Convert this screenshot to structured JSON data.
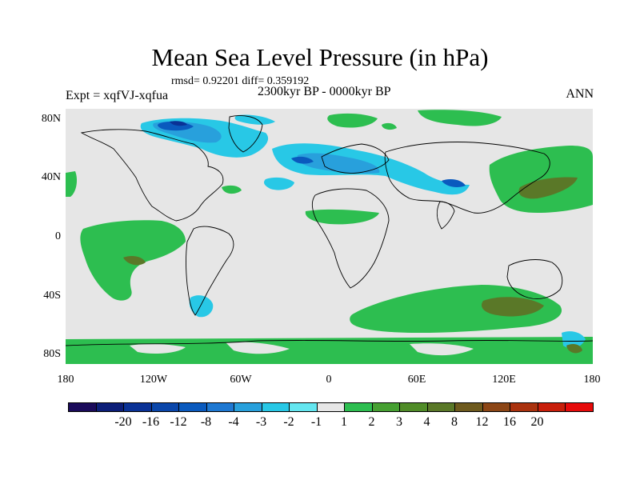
{
  "title": "Mean Sea Level Pressure (in hPa)",
  "stats": "rmsd= 0.92201 diff= 0.359192",
  "experiment": "Expt = xqfVJ-xqfua",
  "period": "2300kyr BP - 0000kyr BP",
  "season": "ANN",
  "lat_labels": [
    "80N",
    "40N",
    "0",
    "40S",
    "80S"
  ],
  "lon_labels": [
    "180",
    "120W",
    "60W",
    "0",
    "60E",
    "120E",
    "180"
  ],
  "colorbar": {
    "colors": [
      "#1a0a5a",
      "#0c1e78",
      "#0a3296",
      "#0a46aa",
      "#0a5abe",
      "#1e78d2",
      "#28a0dc",
      "#28c8e6",
      "#64e6f0",
      "#e6e6e6",
      "#2dbe50",
      "#46a032",
      "#508c28",
      "#5a7828",
      "#6e5a1e",
      "#8c4616",
      "#aa320e",
      "#c81e0a",
      "#e60a0a"
    ],
    "labels": [
      "-20",
      "-16",
      "-12",
      "-8",
      "-4",
      "-3",
      "-2",
      "-1",
      "1",
      "2",
      "3",
      "4",
      "8",
      "12",
      "16",
      "20"
    ]
  },
  "map_colors": {
    "neutral": "#e6e6e6",
    "pos1": "#2dbe50",
    "pos2": "#5a7828",
    "neg1": "#28c8e6",
    "neg2": "#28a0dc",
    "neg3": "#0a5abe",
    "neg4": "#0a3296",
    "coast": "#000000"
  }
}
